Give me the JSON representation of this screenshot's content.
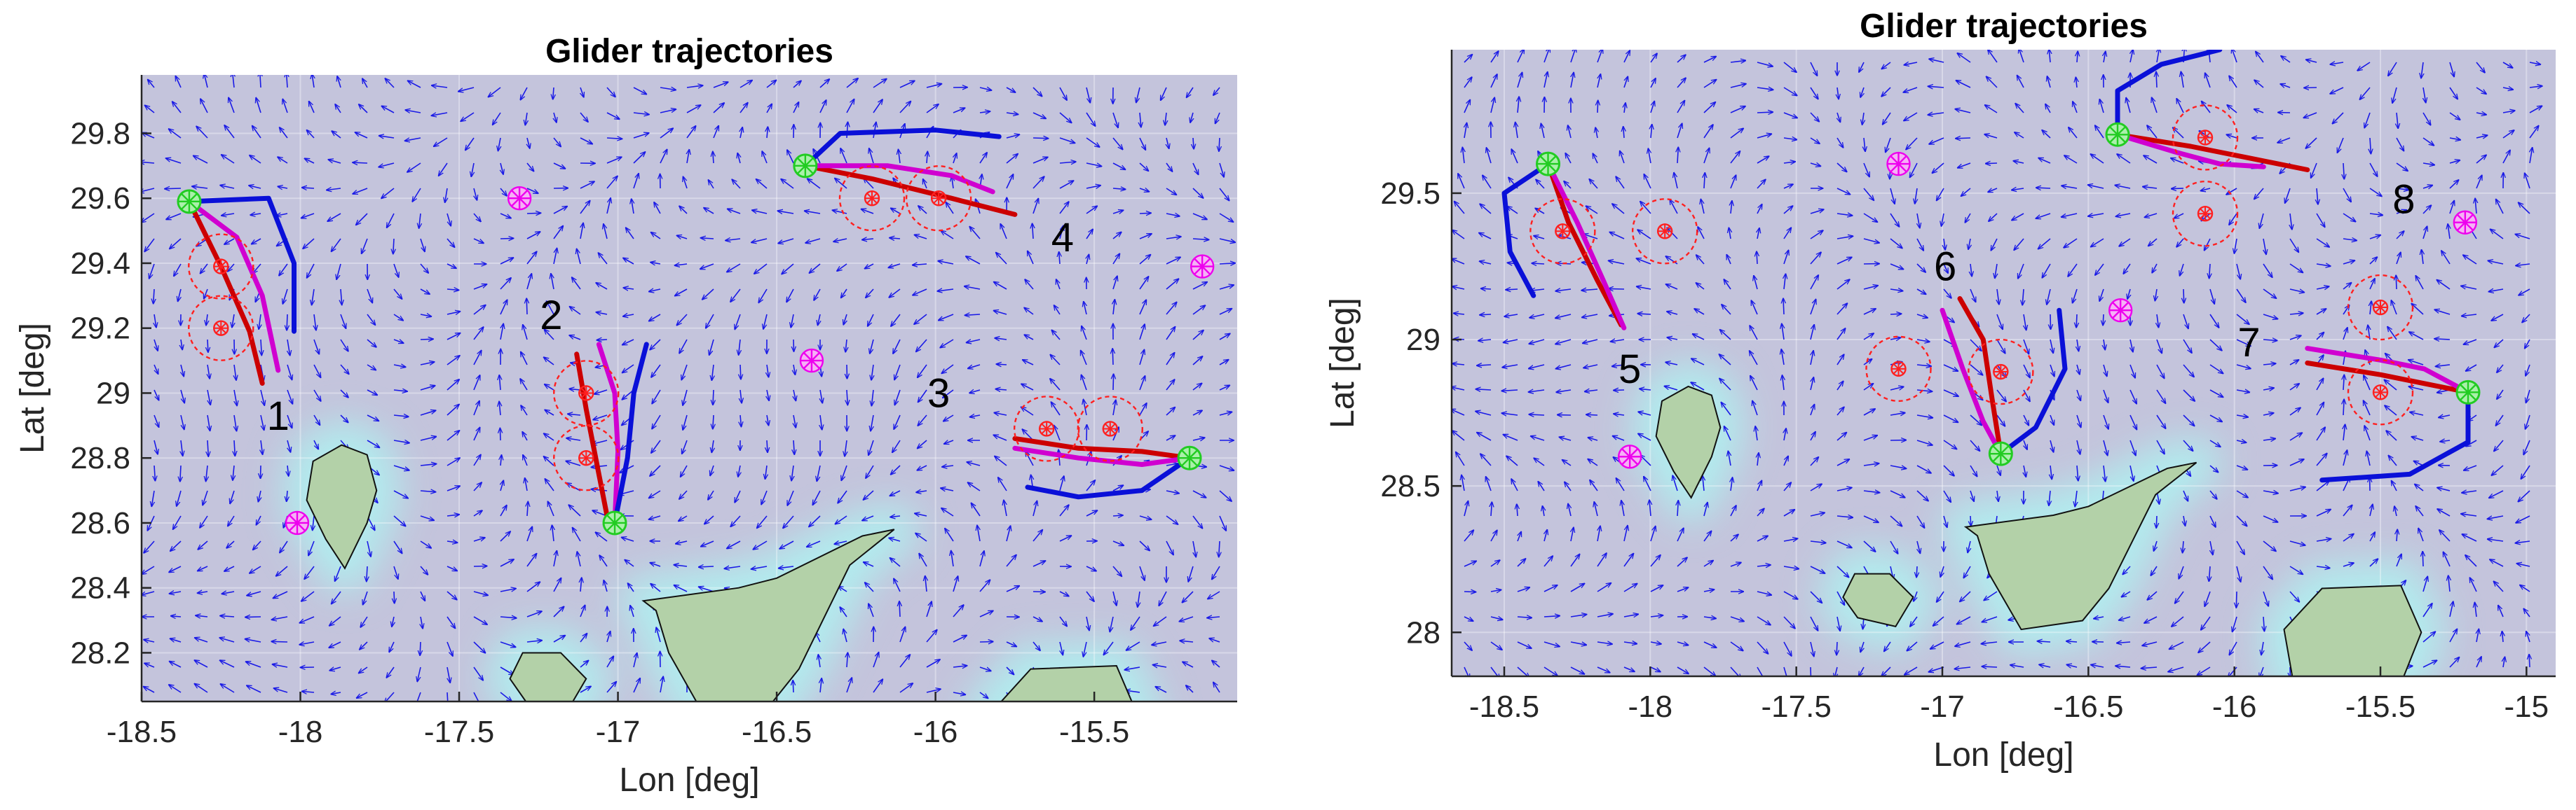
{
  "chart_data": [
    {
      "type": "line",
      "title": "Glider trajectories",
      "xlabel": "Lon [deg]",
      "ylabel": "Lat [deg]",
      "xlim": [
        -18.5,
        -15.05
      ],
      "ylim": [
        28.05,
        29.98
      ],
      "xticks": [
        -18.5,
        -18,
        -17.5,
        -17,
        -16.5,
        -16,
        -15.5
      ],
      "xtick_labels": [
        "-18.5",
        "-18",
        "-17.5",
        "-17",
        "-16.5",
        "-16",
        "-15.5"
      ],
      "yticks": [
        28.2,
        28.4,
        28.6,
        28.8,
        29,
        29.2,
        29.4,
        29.6,
        29.8
      ],
      "ytick_labels": [
        "28.2",
        "28.4",
        "28.6",
        "28.8",
        "29",
        "29.2",
        "29.4",
        "29.6",
        "29.8"
      ],
      "colors": {
        "background": "#c4c4dc",
        "arrow": "#1a1ae6",
        "red": "#cc0000",
        "magenta": "#d000d0",
        "blue": "#0a10d8",
        "start": "#22cc22",
        "waypoint": "#ff2020",
        "target": "#ee00ee",
        "land": "#b3d1a8",
        "glow": "#b0f0f0"
      },
      "labels": [
        {
          "text": "1",
          "x": -18.07,
          "y": 28.93
        },
        {
          "text": "2",
          "x": -17.21,
          "y": 29.24
        },
        {
          "text": "3",
          "x": -15.99,
          "y": 29.0
        },
        {
          "text": "4",
          "x": -15.6,
          "y": 29.48
        }
      ],
      "series": [
        {
          "name": "red-1",
          "color": "red",
          "points": [
            [
              -18.35,
              29.59
            ],
            [
              -18.25,
              29.39
            ],
            [
              -18.16,
              29.19
            ],
            [
              -18.12,
              29.03
            ]
          ]
        },
        {
          "name": "magenta-1",
          "color": "magenta",
          "points": [
            [
              -18.35,
              29.59
            ],
            [
              -18.2,
              29.48
            ],
            [
              -18.12,
              29.3
            ],
            [
              -18.07,
              29.07
            ]
          ]
        },
        {
          "name": "blue-1",
          "color": "blue",
          "points": [
            [
              -18.35,
              29.59
            ],
            [
              -18.1,
              29.6
            ],
            [
              -18.02,
              29.4
            ],
            [
              -18.02,
              29.19
            ]
          ]
        },
        {
          "name": "red-2",
          "color": "red",
          "points": [
            [
              -17.13,
              29.12
            ],
            [
              -17.1,
              28.95
            ],
            [
              -17.06,
              28.75
            ],
            [
              -17.03,
              28.6
            ]
          ]
        },
        {
          "name": "magenta-2",
          "color": "magenta",
          "points": [
            [
              -17.06,
              29.15
            ],
            [
              -17.01,
              29.0
            ],
            [
              -17.0,
              28.82
            ],
            [
              -17.01,
              28.6
            ]
          ]
        },
        {
          "name": "blue-2",
          "color": "blue",
          "points": [
            [
              -16.91,
              29.15
            ],
            [
              -16.95,
              29.0
            ],
            [
              -16.97,
              28.8
            ],
            [
              -17.01,
              28.6
            ]
          ]
        },
        {
          "name": "red-3",
          "color": "red",
          "points": [
            [
              -15.75,
              28.86
            ],
            [
              -15.55,
              28.83
            ],
            [
              -15.35,
              28.82
            ],
            [
              -15.2,
              28.8
            ]
          ]
        },
        {
          "name": "magenta-3",
          "color": "magenta",
          "points": [
            [
              -15.75,
              28.83
            ],
            [
              -15.55,
              28.8
            ],
            [
              -15.35,
              28.78
            ],
            [
              -15.2,
              28.8
            ]
          ]
        },
        {
          "name": "blue-3",
          "color": "blue",
          "points": [
            [
              -15.71,
              28.71
            ],
            [
              -15.55,
              28.68
            ],
            [
              -15.35,
              28.7
            ],
            [
              -15.2,
              28.8
            ]
          ]
        },
        {
          "name": "red-4",
          "color": "red",
          "points": [
            [
              -16.41,
              29.7
            ],
            [
              -16.2,
              29.66
            ],
            [
              -15.95,
              29.6
            ],
            [
              -15.75,
              29.55
            ]
          ]
        },
        {
          "name": "magenta-4",
          "color": "magenta",
          "points": [
            [
              -16.41,
              29.7
            ],
            [
              -16.15,
              29.7
            ],
            [
              -15.95,
              29.67
            ],
            [
              -15.82,
              29.62
            ]
          ]
        },
        {
          "name": "blue-4",
          "color": "blue",
          "points": [
            [
              -16.41,
              29.7
            ],
            [
              -16.3,
              29.8
            ],
            [
              -16.0,
              29.81
            ],
            [
              -15.8,
              29.79
            ]
          ]
        }
      ],
      "starts": [
        [
          -18.35,
          29.59
        ],
        [
          -17.01,
          28.6
        ],
        [
          -16.41,
          29.7
        ],
        [
          -15.2,
          28.8
        ]
      ],
      "waypoints": [
        [
          -18.25,
          29.39
        ],
        [
          -18.25,
          29.2
        ],
        [
          -17.1,
          29.0
        ],
        [
          -17.1,
          28.8
        ],
        [
          -16.2,
          29.6
        ],
        [
          -15.99,
          29.6
        ],
        [
          -15.65,
          28.89
        ],
        [
          -15.45,
          28.89
        ]
      ],
      "targets": [
        [
          -17.31,
          29.6
        ],
        [
          -18.01,
          28.6
        ],
        [
          -16.39,
          29.1
        ],
        [
          -15.16,
          29.39
        ]
      ]
    },
    {
      "type": "line",
      "title": "Glider trajectories",
      "xlabel": "Lon [deg]",
      "ylabel": "Lat [deg]",
      "xlim": [
        -18.68,
        -14.9
      ],
      "ylim": [
        27.85,
        29.99
      ],
      "xticks": [
        -18.5,
        -18,
        -17.5,
        -17,
        -16.5,
        -16,
        -15.5,
        -15
      ],
      "xtick_labels": [
        "-18.5",
        "-18",
        "-17.5",
        "-17",
        "-16.5",
        "-16",
        "-15.5",
        "-15"
      ],
      "yticks": [
        28,
        28.5,
        29,
        29.5
      ],
      "ytick_labels": [
        "28",
        "28.5",
        "29",
        "29.5"
      ],
      "colors": {
        "background": "#c4c4dc",
        "arrow": "#1a1ae6",
        "red": "#cc0000",
        "magenta": "#d000d0",
        "blue": "#0a10d8",
        "start": "#22cc22",
        "waypoint": "#ff2020",
        "target": "#ee00ee",
        "land": "#b3d1a8",
        "glow": "#b0f0f0"
      },
      "labels": [
        {
          "text": "5",
          "x": -18.07,
          "y": 28.9
        },
        {
          "text": "6",
          "x": -16.99,
          "y": 29.25
        },
        {
          "text": "7",
          "x": -15.95,
          "y": 28.99
        },
        {
          "text": "8",
          "x": -15.42,
          "y": 29.48
        }
      ],
      "series": [
        {
          "name": "red-5",
          "color": "red",
          "points": [
            [
              -18.35,
              29.6
            ],
            [
              -18.28,
              29.4
            ],
            [
              -18.18,
              29.2
            ],
            [
              -18.1,
              29.05
            ]
          ]
        },
        {
          "name": "magenta-5",
          "color": "magenta",
          "points": [
            [
              -18.35,
              29.6
            ],
            [
              -18.25,
              29.4
            ],
            [
              -18.16,
              29.2
            ],
            [
              -18.09,
              29.04
            ]
          ]
        },
        {
          "name": "blue-5",
          "color": "blue",
          "points": [
            [
              -18.35,
              29.6
            ],
            [
              -18.5,
              29.5
            ],
            [
              -18.48,
              29.3
            ],
            [
              -18.4,
              29.15
            ]
          ]
        },
        {
          "name": "red-6",
          "color": "red",
          "points": [
            [
              -16.94,
              29.14
            ],
            [
              -16.86,
              29.0
            ],
            [
              -16.83,
              28.8
            ],
            [
              -16.8,
              28.61
            ]
          ]
        },
        {
          "name": "magenta-6",
          "color": "magenta",
          "points": [
            [
              -17.0,
              29.1
            ],
            [
              -16.93,
              28.9
            ],
            [
              -16.86,
              28.72
            ],
            [
              -16.8,
              28.61
            ]
          ]
        },
        {
          "name": "blue-6",
          "color": "blue",
          "points": [
            [
              -16.6,
              29.1
            ],
            [
              -16.58,
              28.9
            ],
            [
              -16.68,
              28.7
            ],
            [
              -16.8,
              28.61
            ]
          ]
        },
        {
          "name": "red-7",
          "color": "red",
          "points": [
            [
              -15.75,
              28.92
            ],
            [
              -15.5,
              28.88
            ],
            [
              -15.35,
              28.85
            ],
            [
              -15.2,
              28.82
            ]
          ]
        },
        {
          "name": "magenta-7",
          "color": "magenta",
          "points": [
            [
              -15.75,
              28.97
            ],
            [
              -15.5,
              28.93
            ],
            [
              -15.35,
              28.9
            ],
            [
              -15.2,
              28.82
            ]
          ]
        },
        {
          "name": "blue-7",
          "color": "blue",
          "points": [
            [
              -15.2,
              28.82
            ],
            [
              -15.2,
              28.65
            ],
            [
              -15.4,
              28.54
            ],
            [
              -15.7,
              28.52
            ]
          ]
        },
        {
          "name": "red-8",
          "color": "red",
          "points": [
            [
              -16.4,
              29.7
            ],
            [
              -16.15,
              29.66
            ],
            [
              -15.95,
              29.62
            ],
            [
              -15.75,
              29.58
            ]
          ]
        },
        {
          "name": "magenta-8",
          "color": "magenta",
          "points": [
            [
              -16.4,
              29.7
            ],
            [
              -16.2,
              29.64
            ],
            [
              -16.05,
              29.6
            ],
            [
              -15.9,
              29.59
            ]
          ]
        },
        {
          "name": "blue-8",
          "color": "blue",
          "points": [
            [
              -16.4,
              29.7
            ],
            [
              -16.4,
              29.85
            ],
            [
              -16.25,
              29.94
            ],
            [
              -16.05,
              29.99
            ]
          ]
        }
      ],
      "starts": [
        [
          -18.35,
          29.6
        ],
        [
          -16.8,
          28.61
        ],
        [
          -16.4,
          29.7
        ],
        [
          -15.2,
          28.82
        ]
      ],
      "waypoints": [
        [
          -18.3,
          29.37
        ],
        [
          -17.95,
          29.37
        ],
        [
          -17.15,
          28.9
        ],
        [
          -16.8,
          28.89
        ],
        [
          -16.1,
          29.69
        ],
        [
          -16.1,
          29.43
        ],
        [
          -15.5,
          29.11
        ],
        [
          -15.5,
          28.82
        ]
      ],
      "targets": [
        [
          -17.15,
          29.6
        ],
        [
          -18.07,
          28.6
        ],
        [
          -16.39,
          29.1
        ],
        [
          -15.21,
          29.4
        ]
      ]
    }
  ]
}
